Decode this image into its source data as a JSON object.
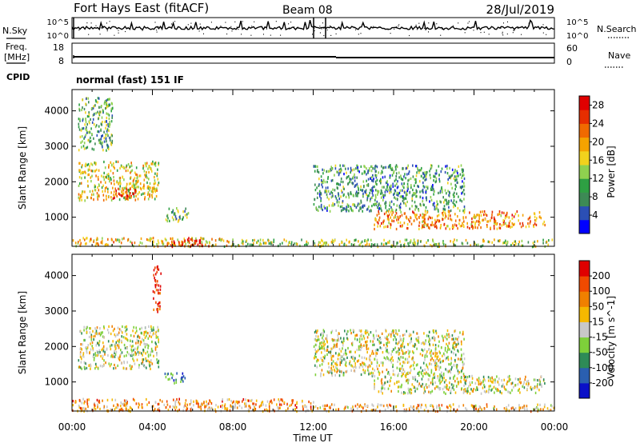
{
  "header": {
    "station": "Fort Hays East (fitACF)",
    "beam": "Beam 08",
    "date": "28/Jul/2019"
  },
  "top_panels": {
    "nsky_label": "N.Sky",
    "nsearch_label": "N.Search",
    "noise_ticks": [
      "10^5",
      "10^0"
    ],
    "freq_label_1": "Freq.",
    "freq_label_2": "[MHz]",
    "freq_ticks": [
      "18",
      "8"
    ],
    "nave_label": "Nave",
    "nave_ticks": [
      "60",
      "0"
    ],
    "cpid_label": "CPID",
    "cpid_text": "normal (fast) 151 IF"
  },
  "colors": {
    "power": [
      "#0000ff",
      "#2b4fb5",
      "#3d8a55",
      "#2ea043",
      "#8fd14f",
      "#f2d21d",
      "#f5a300",
      "#f06a00",
      "#e62e00",
      "#e00000"
    ],
    "velocity": [
      "#0a10c8",
      "#2a5fb0",
      "#2e8b57",
      "#7ed03a",
      "#c8c8c8",
      "#f5b800",
      "#f08000",
      "#f04a00",
      "#e00000"
    ]
  },
  "chart_data": [
    {
      "type": "heatmap",
      "quantity": "Power",
      "xlabel": "Time UT",
      "ylabel": "Slant Range [km]",
      "x_ticks": [
        "00:00",
        "04:00",
        "08:00",
        "12:00",
        "16:00",
        "20:00",
        "00:00"
      ],
      "xlim_hours": [
        0,
        24
      ],
      "y_ticks": [
        1000,
        2000,
        3000,
        4000
      ],
      "ylim": [
        180,
        4600
      ],
      "colorbar_label": "Power [dB]",
      "colorbar_ticks": [
        4,
        8,
        12,
        16,
        20,
        24,
        28
      ],
      "colorbar_range": [
        0,
        30
      ],
      "regions": [
        {
          "t0": 0.3,
          "t1": 4.3,
          "r0": 1500,
          "r1": 2600,
          "level": 0.55
        },
        {
          "t0": 2.0,
          "t1": 3.3,
          "r0": 1550,
          "r1": 1850,
          "level": 0.85
        },
        {
          "t0": 0.3,
          "t1": 2.0,
          "r0": 2900,
          "r1": 4400,
          "level": 0.35
        },
        {
          "t0": 4.6,
          "t1": 5.8,
          "r0": 900,
          "r1": 1300,
          "level": 0.4
        },
        {
          "t0": 0.0,
          "t1": 8.0,
          "r0": 200,
          "r1": 450,
          "level": 0.6
        },
        {
          "t0": 4.8,
          "t1": 6.5,
          "r0": 200,
          "r1": 450,
          "level": 0.85
        },
        {
          "t0": 8.0,
          "t1": 24.0,
          "r0": 200,
          "r1": 400,
          "level": 0.45
        },
        {
          "t0": 12.0,
          "t1": 19.5,
          "r0": 1200,
          "r1": 2500,
          "level": 0.3
        },
        {
          "t0": 15.0,
          "t1": 23.5,
          "r0": 700,
          "r1": 1200,
          "level": 0.7
        }
      ]
    },
    {
      "type": "heatmap",
      "quantity": "Velocity",
      "xlabel": "Time UT",
      "ylabel": "Slant Range [km]",
      "x_ticks": [
        "00:00",
        "04:00",
        "08:00",
        "12:00",
        "16:00",
        "20:00",
        "00:00"
      ],
      "xlim_hours": [
        0,
        24
      ],
      "y_ticks": [
        1000,
        2000,
        3000,
        4000
      ],
      "ylim": [
        180,
        4600
      ],
      "colorbar_label": "Velocity [m s^-1]",
      "colorbar_ticks": [
        "200",
        "100",
        "50",
        "15",
        "-15",
        "-50",
        "-100",
        "-200"
      ],
      "regions": [
        {
          "t0": 0.3,
          "t1": 4.3,
          "r0": 1400,
          "r1": 2600,
          "level": 0.5
        },
        {
          "t0": 4.0,
          "t1": 4.4,
          "r0": 3000,
          "r1": 4300,
          "level": 0.95
        },
        {
          "t0": 4.6,
          "t1": 5.6,
          "r0": 1000,
          "r1": 1300,
          "level": 0.25
        },
        {
          "t0": 0.0,
          "t1": 12.0,
          "r0": 200,
          "r1": 550,
          "level": 0.68
        },
        {
          "t0": 12.0,
          "t1": 24.0,
          "r0": 200,
          "r1": 400,
          "level": 0.62
        },
        {
          "t0": 12.0,
          "t1": 19.5,
          "r0": 1200,
          "r1": 2500,
          "level": 0.5
        },
        {
          "t0": 15.0,
          "t1": 23.5,
          "r0": 700,
          "r1": 1200,
          "level": 0.5
        }
      ]
    }
  ]
}
